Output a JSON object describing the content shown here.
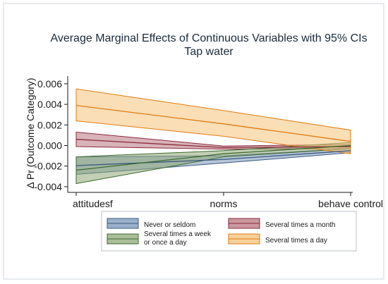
{
  "chart_data": {
    "type": "line",
    "title": "Average Marginal Effects of Continuous Variables with 95% CIs",
    "subtitle": "Tap water",
    "ylabel": "Δ Pr (Outcome Category)",
    "xlabel": "",
    "categories": [
      "attitudesf",
      "norms",
      "behave control"
    ],
    "ylim": [
      -0.0042,
      0.0062
    ],
    "yticks": [
      "0.006",
      "0.004",
      "0.002",
      "0.000",
      "-0.002",
      "-0.004"
    ],
    "ytick_values": [
      0.006,
      0.004,
      0.002,
      0.0,
      -0.002,
      -0.004
    ],
    "grid": false,
    "legend_position": "bottom",
    "series": [
      {
        "name": "Never or seldom",
        "values": [
          -0.00195,
          -0.00135,
          -0.0005
        ],
        "lower": [
          -0.0028,
          -0.0017,
          -0.0007
        ],
        "upper": [
          -0.0011,
          -0.001,
          -0.0003
        ],
        "line_color": "#3d5a80",
        "fill_color": "#7a96b8"
      },
      {
        "name": "Several times a month",
        "values": [
          0.0006,
          -0.0002,
          -0.0001
        ],
        "lower": [
          -0.0001,
          -0.00035,
          -0.0003
        ],
        "upper": [
          0.0013,
          -5e-05,
          0.0001
        ],
        "line_color": "#8b2b3a",
        "fill_color": "#b8757f"
      },
      {
        "name": "Several times a week\nor once a day",
        "values": [
          -0.0024,
          -0.0008,
          0.0
        ],
        "lower": [
          -0.0037,
          -0.0011,
          -0.0003
        ],
        "upper": [
          -0.0011,
          -0.0005,
          0.0003
        ],
        "line_color": "#3d6b2e",
        "fill_color": "#8fa878"
      },
      {
        "name": "Several times a day",
        "values": [
          0.0039,
          0.0021,
          0.0004
        ],
        "lower": [
          0.0024,
          0.0009,
          -0.0008
        ],
        "upper": [
          0.0055,
          0.0034,
          0.0015
        ],
        "line_color": "#e07b10",
        "fill_color": "#f4c27a"
      }
    ]
  }
}
